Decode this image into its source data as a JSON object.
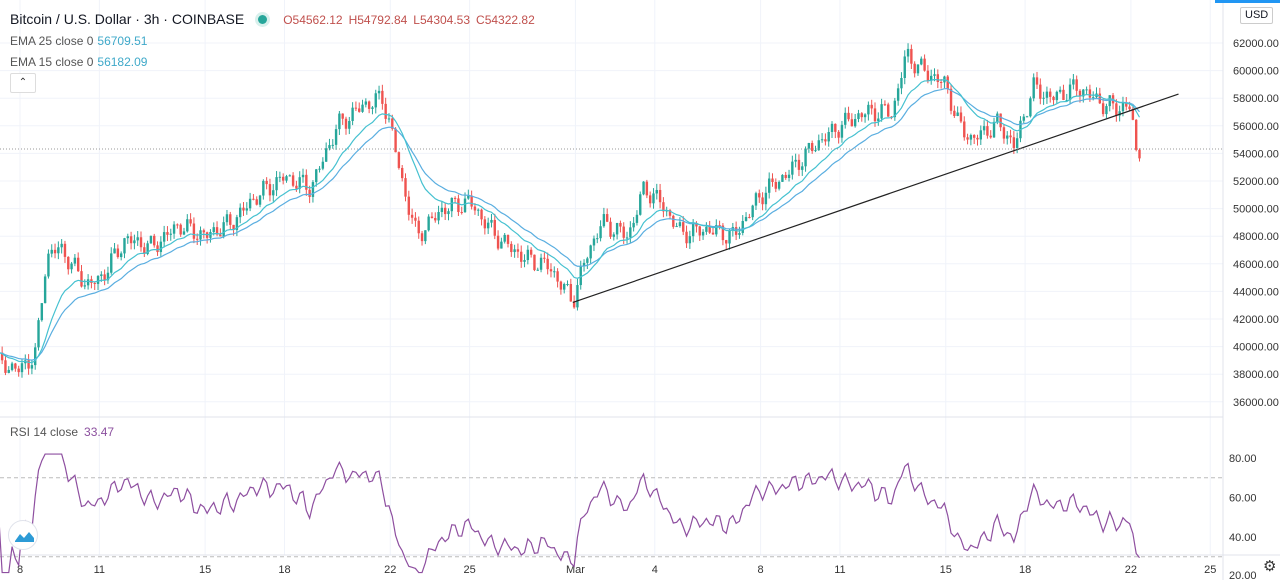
{
  "header": {
    "symbol": "Bitcoin / U.S. Dollar · 3h · COINBASE",
    "open": "O54562.12",
    "high": "H54792.84",
    "low": "L54304.53",
    "close": "C54322.82"
  },
  "indicators": [
    {
      "label": "EMA 25 close 0",
      "value": "56709.51",
      "period": 25
    },
    {
      "label": "EMA 15 close 0",
      "value": "56182.09",
      "period": 15
    }
  ],
  "rsi": {
    "label": "RSI 14 close",
    "value": "33.47",
    "upper": 70,
    "lower": 30
  },
  "currency": "USD",
  "colors": {
    "up": "#26a69a",
    "down": "#ef5350",
    "ema25": "#5aaee0",
    "ema15": "#45c1d0",
    "rsi": "#8e4fa0"
  },
  "chart_data": {
    "type": "candlestick",
    "title": "Bitcoin / U.S. Dollar · 3h · COINBASE",
    "ylim": [
      35000,
      64500
    ],
    "y_ticks": [
      "62000.00",
      "60000.00",
      "58000.00",
      "56000.00",
      "54000.00",
      "52000.00",
      "50000.00",
      "48000.00",
      "46000.00",
      "44000.00",
      "42000.00",
      "40000.00",
      "38000.00",
      "36000.00"
    ],
    "rsi_ticks": [
      "80.00",
      "60.00",
      "40.00",
      "20.00"
    ],
    "x_ticks": [
      {
        "label": "8",
        "day": 0
      },
      {
        "label": "11",
        "day": 3
      },
      {
        "label": "15",
        "day": 7
      },
      {
        "label": "18",
        "day": 10
      },
      {
        "label": "22",
        "day": 14
      },
      {
        "label": "25",
        "day": 17
      },
      {
        "label": "Mar",
        "day": 21
      },
      {
        "label": "4",
        "day": 24
      },
      {
        "label": "8",
        "day": 28
      },
      {
        "label": "11",
        "day": 31
      },
      {
        "label": "15",
        "day": 35
      },
      {
        "label": "18",
        "day": 38
      },
      {
        "label": "22",
        "day": 42
      },
      {
        "label": "25",
        "day": 45
      }
    ],
    "close_path": [
      [
        -0.8,
        38800
      ],
      [
        0,
        38300
      ],
      [
        0.6,
        39500
      ],
      [
        1.0,
        46500
      ],
      [
        1.5,
        47200
      ],
      [
        2.5,
        44500
      ],
      [
        3,
        44800
      ],
      [
        4,
        47800
      ],
      [
        5,
        47200
      ],
      [
        6,
        48800
      ],
      [
        7,
        48000
      ],
      [
        8,
        49000
      ],
      [
        9,
        51000
      ],
      [
        10,
        52300
      ],
      [
        11,
        51500
      ],
      [
        12,
        56000
      ],
      [
        13,
        57500
      ],
      [
        13.7,
        58000
      ],
      [
        14,
        56000
      ],
      [
        14.5,
        51500
      ],
      [
        15,
        48000
      ],
      [
        16,
        50000
      ],
      [
        17,
        50500
      ],
      [
        18,
        48000
      ],
      [
        19,
        46500
      ],
      [
        20,
        45800
      ],
      [
        20.9,
        43300
      ],
      [
        21.4,
        46500
      ],
      [
        22,
        49000
      ],
      [
        23,
        48000
      ],
      [
        23.6,
        51500
      ],
      [
        24.2,
        50500
      ],
      [
        25,
        48200
      ],
      [
        26,
        48500
      ],
      [
        27,
        48000
      ],
      [
        28,
        51000
      ],
      [
        29,
        52500
      ],
      [
        30,
        54500
      ],
      [
        31,
        56000
      ],
      [
        32,
        57000
      ],
      [
        33,
        57000
      ],
      [
        33.5,
        61200
      ],
      [
        34,
        60200
      ],
      [
        35,
        59000
      ],
      [
        35.5,
        56000
      ],
      [
        36,
        55000
      ],
      [
        37,
        56200
      ],
      [
        37.6,
        54500
      ],
      [
        38.3,
        58800
      ],
      [
        39,
        58000
      ],
      [
        40,
        58800
      ],
      [
        41,
        57500
      ],
      [
        41.6,
        57300
      ],
      [
        42,
        57400
      ],
      [
        42.2,
        54000
      ],
      [
        42.4,
        54300
      ]
    ],
    "last_price": 54322.82,
    "trendline": [
      [
        20.9,
        43200
      ],
      [
        43.8,
        58300
      ]
    ]
  }
}
